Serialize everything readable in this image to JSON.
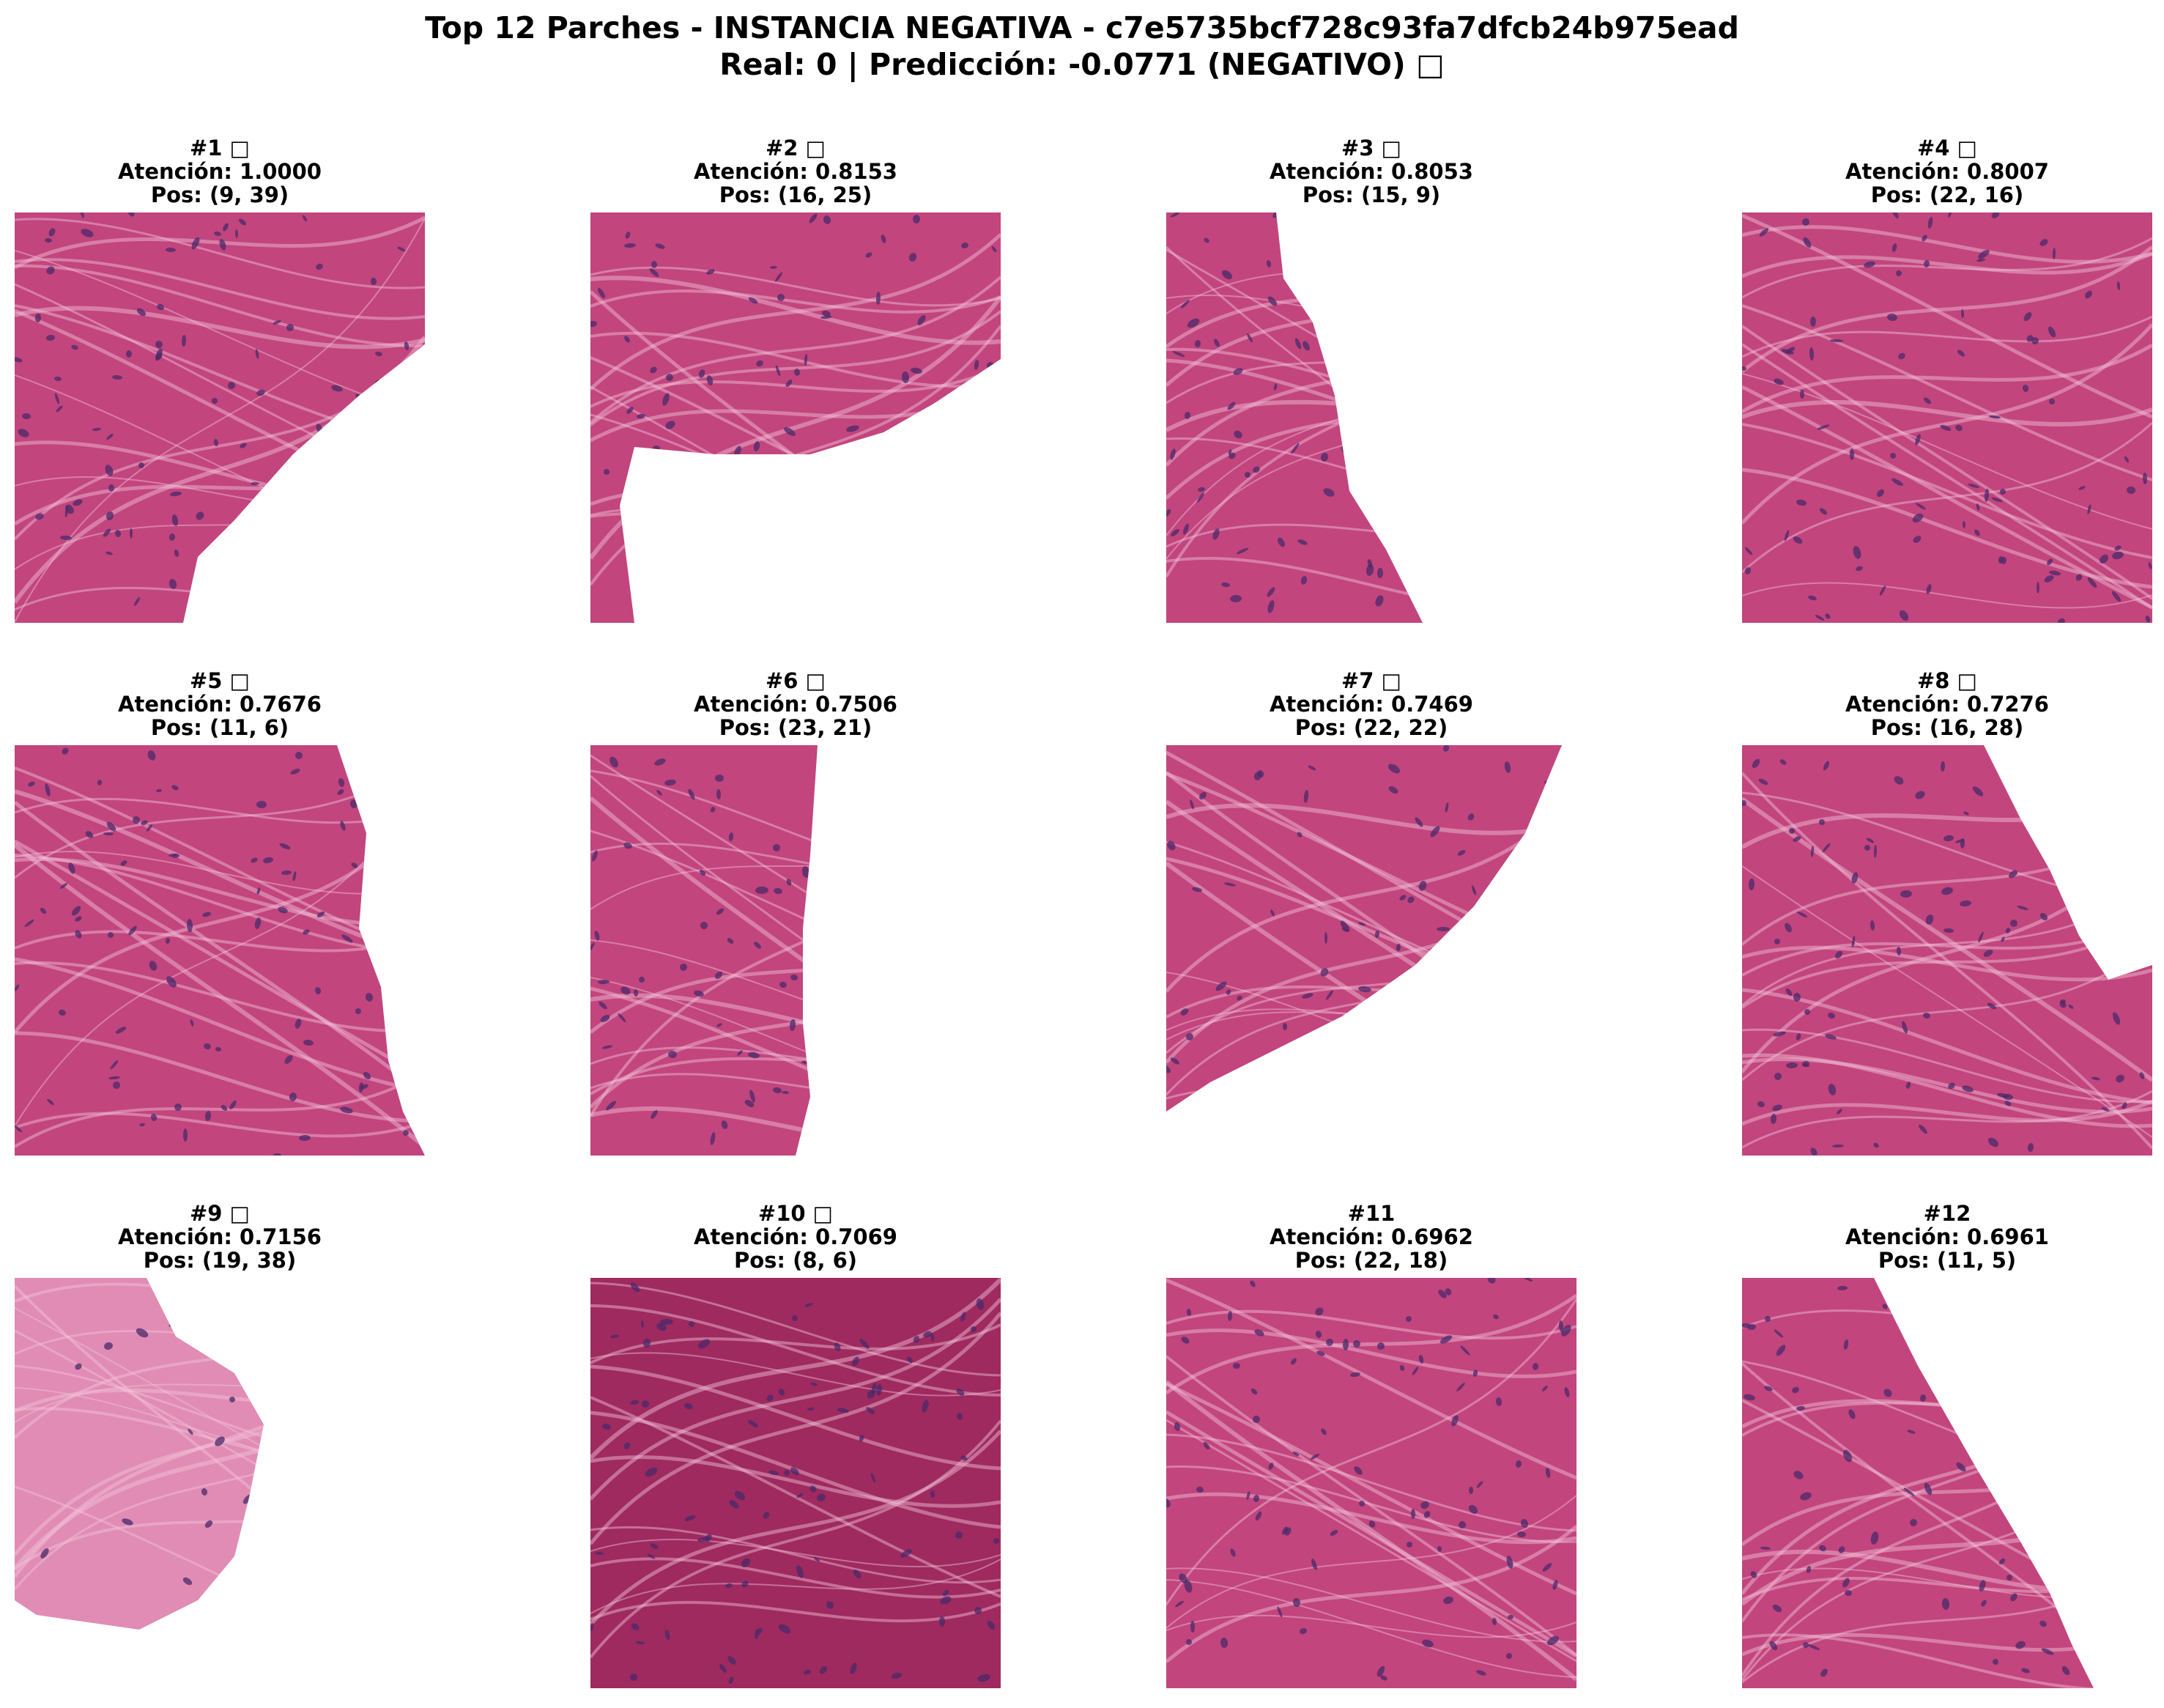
{
  "title_line1": "Top 12 Parches - INSTANCIA NEGATIVA - c7e5735bcf728c93fa7dfcb24b975ead",
  "title_line2": "Real: 0 | Predicción: -0.0771 (NEGATIVO) □",
  "patches": [
    {
      "rank": "#1 □",
      "attention": "Atención: 1.0000",
      "pos": "Pos: (9, 39)",
      "tissue": "dense-pink"
    },
    {
      "rank": "#2 □",
      "attention": "Atención: 0.8153",
      "pos": "Pos: (16, 25)",
      "tissue": "pink-with-gap"
    },
    {
      "rank": "#3 □",
      "attention": "Atención: 0.8053",
      "pos": "Pos: (15, 9)",
      "tissue": "left-strip"
    },
    {
      "rank": "#4 □",
      "attention": "Atención: 0.8007",
      "pos": "Pos: (22, 16)",
      "tissue": "full-fibrous"
    },
    {
      "rank": "#5 □",
      "attention": "Atención: 0.7676",
      "pos": "Pos: (11, 6)",
      "tissue": "left-dense"
    },
    {
      "rank": "#6 □",
      "attention": "Atención: 0.7506",
      "pos": "Pos: (23, 21)",
      "tissue": "left-half"
    },
    {
      "rank": "#7 □",
      "attention": "Atención: 0.7469",
      "pos": "Pos: (22, 22)",
      "tissue": "upper-left-wedge"
    },
    {
      "rank": "#8 □",
      "attention": "Atención: 0.7276",
      "pos": "Pos: (16, 28)",
      "tissue": "mostly-full"
    },
    {
      "rank": "#9 □",
      "attention": "Atención: 0.7156",
      "pos": "Pos: (19, 38)",
      "tissue": "pale-fragment"
    },
    {
      "rank": "#10 □",
      "attention": "Atención: 0.7069",
      "pos": "Pos: (8, 6)",
      "tissue": "deep-red"
    },
    {
      "rank": "#11",
      "attention": "Atención: 0.6962",
      "pos": "Pos: (22, 18)",
      "tissue": "full-fibrous"
    },
    {
      "rank": "#12",
      "attention": "Atención: 0.6961",
      "pos": "Pos: (11, 5)",
      "tissue": "left-triangle"
    }
  ],
  "colors": {
    "tissue": "#c2457e",
    "tissue_dark": "#9e2a5f",
    "tissue_light": "#e08cb5",
    "nuclei": "#4a2a6a",
    "background": "#f6eef2"
  }
}
